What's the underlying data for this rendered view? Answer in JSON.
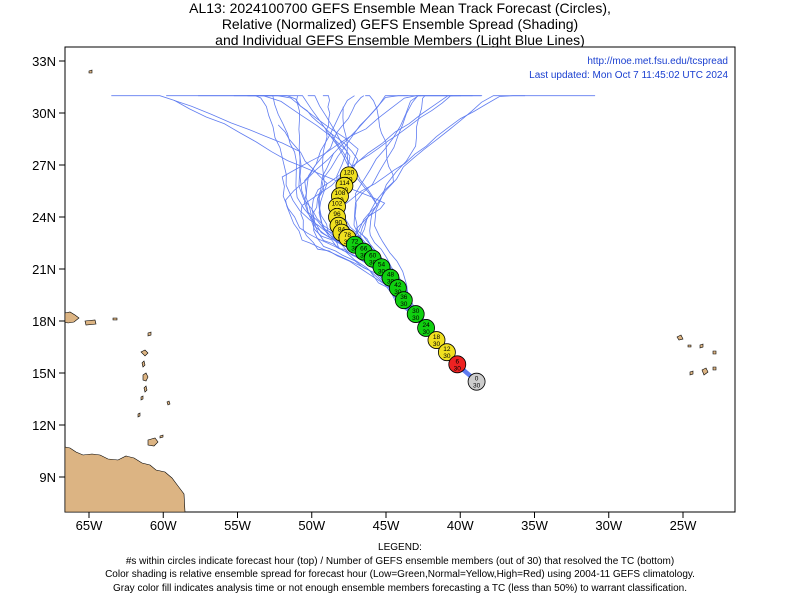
{
  "title": {
    "line1": "AL13: 2024100700 GEFS Ensemble Mean Track Forecast (Circles),",
    "line2": "Relative (Normalized) GEFS Ensemble Spread (Shading)",
    "line3": "and Individual GEFS Ensemble Members (Light Blue Lines)"
  },
  "map": {
    "url_text": "http://moe.met.fsu.edu/tcspread",
    "updated_text": "Last updated: Mon Oct 7 11:45:02 UTC 2024",
    "lat_labels": [
      "33N",
      "30N",
      "27N",
      "24N",
      "21N",
      "18N",
      "15N",
      "12N",
      "9N"
    ],
    "lon_labels": [
      "65W",
      "60W",
      "55W",
      "50W",
      "45W",
      "40W",
      "35W",
      "30W",
      "25W"
    ],
    "colors": {
      "land": "#dcb483",
      "member_line": "#4466ee",
      "green": "#10d010",
      "yellow": "#f0e020",
      "red": "#ee2222",
      "gray": "#cccccc",
      "text_blue": "#1a3fd0"
    }
  },
  "track": [
    {
      "hour": "0",
      "members": "30",
      "lon": -38.9,
      "lat": 14.5,
      "spread": "gray"
    },
    {
      "hour": "6",
      "members": "30",
      "lon": -40.2,
      "lat": 15.5,
      "spread": "red"
    },
    {
      "hour": "12",
      "members": "30",
      "lon": -40.9,
      "lat": 16.2,
      "spread": "yellow"
    },
    {
      "hour": "18",
      "members": "30",
      "lon": -41.6,
      "lat": 16.9,
      "spread": "yellow"
    },
    {
      "hour": "24",
      "members": "30",
      "lon": -42.3,
      "lat": 17.6,
      "spread": "green"
    },
    {
      "hour": "30",
      "members": "30",
      "lon": -43.0,
      "lat": 18.4,
      "spread": "green"
    },
    {
      "hour": "36",
      "members": "30",
      "lon": -43.8,
      "lat": 19.2,
      "spread": "green"
    },
    {
      "hour": "42",
      "members": "30",
      "lon": -44.2,
      "lat": 19.9,
      "spread": "green"
    },
    {
      "hour": "48",
      "members": "30",
      "lon": -44.7,
      "lat": 20.5,
      "spread": "green"
    },
    {
      "hour": "54",
      "members": "30",
      "lon": -45.3,
      "lat": 21.1,
      "spread": "green"
    },
    {
      "hour": "60",
      "members": "30",
      "lon": -45.9,
      "lat": 21.6,
      "spread": "green"
    },
    {
      "hour": "66",
      "members": "30",
      "lon": -46.5,
      "lat": 22.0,
      "spread": "green"
    },
    {
      "hour": "72",
      "members": "30",
      "lon": -47.1,
      "lat": 22.4,
      "spread": "green"
    },
    {
      "hour": "78",
      "members": "30",
      "lon": -47.6,
      "lat": 22.8,
      "spread": "yellow"
    },
    {
      "hour": "84",
      "members": "30",
      "lon": -48.0,
      "lat": 23.1,
      "spread": "yellow"
    },
    {
      "hour": "90",
      "members": "30",
      "lon": -48.2,
      "lat": 23.5,
      "spread": "yellow"
    },
    {
      "hour": "96",
      "members": "30",
      "lon": -48.3,
      "lat": 24.0,
      "spread": "yellow"
    },
    {
      "hour": "102",
      "members": "30",
      "lon": -48.3,
      "lat": 24.6,
      "spread": "yellow"
    },
    {
      "hour": "108",
      "members": "30",
      "lon": -48.1,
      "lat": 25.2,
      "spread": "yellow"
    },
    {
      "hour": "114",
      "members": "30",
      "lon": -47.8,
      "lat": 25.8,
      "spread": "yellow"
    },
    {
      "hour": "120",
      "members": "30",
      "lon": -47.5,
      "lat": 26.4,
      "spread": "yellow"
    }
  ],
  "legend": {
    "heading": "LEGEND:",
    "line1": "#s within circles indicate forecast hour (top) / Number of GEFS ensemble members (out of 30) that resolved the TC (bottom)",
    "line2": "Color shading is relative ensemble spread for forecast hour (Low=Green,Normal=Yellow,High=Red) using 2004-11 GEFS climatology.",
    "line3": "Gray color fill indicates analysis time or not enough ensemble members forecasting a TC (less than 50%) to warrant classification."
  }
}
